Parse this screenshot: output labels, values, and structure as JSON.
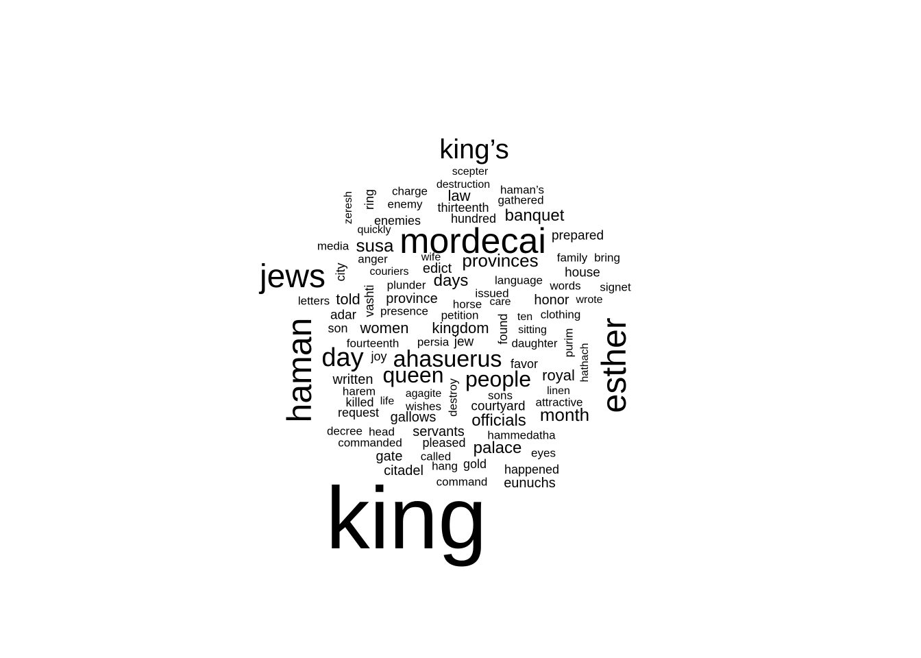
{
  "words": [
    {
      "id": "king",
      "text": "king",
      "color": "#000000"
    },
    {
      "id": "mordecai",
      "text": "mordecai",
      "color": "#000000"
    },
    {
      "id": "esther",
      "text": "esther",
      "color": "#000000"
    },
    {
      "id": "haman",
      "text": "haman",
      "color": "#000000"
    },
    {
      "id": "jews",
      "text": "jews",
      "color": "#000000"
    },
    {
      "id": "kings",
      "text": "king’s",
      "color": "#000000"
    },
    {
      "id": "day",
      "text": "day",
      "color": "#000000"
    },
    {
      "id": "ahasuerus",
      "text": "ahasuerus",
      "color": "#000000"
    },
    {
      "id": "queen",
      "text": "queen",
      "color": "#000000"
    },
    {
      "id": "people",
      "text": "people",
      "color": "#000000"
    },
    {
      "id": "provinces",
      "text": "provinces",
      "color": "#000000"
    },
    {
      "id": "susa",
      "text": "susa",
      "color": "#000000"
    },
    {
      "id": "month",
      "text": "month",
      "color": "#000000"
    },
    {
      "id": "officials",
      "text": "officials",
      "color": "#000000"
    },
    {
      "id": "palace",
      "text": "palace",
      "color": "#000000"
    },
    {
      "id": "banquet",
      "text": "banquet",
      "color": "#000000"
    },
    {
      "id": "days",
      "text": "days",
      "color": "#000000"
    },
    {
      "id": "royal",
      "text": "royal",
      "color": "#000000"
    },
    {
      "id": "kingdom",
      "text": "kingdom",
      "color": "#000000"
    },
    {
      "id": "women",
      "text": "women",
      "color": "#000000"
    },
    {
      "id": "law",
      "text": "law",
      "color": "#000000"
    },
    {
      "id": "told",
      "text": "told",
      "color": "#000000"
    },
    {
      "id": "province",
      "text": "province",
      "color": "#000000"
    },
    {
      "id": "edict",
      "text": "edict",
      "color": "#000000"
    },
    {
      "id": "written",
      "text": "written",
      "color": "#000000"
    },
    {
      "id": "gallows",
      "text": "gallows",
      "color": "#000000"
    },
    {
      "id": "servants",
      "text": "servants",
      "color": "#000000"
    },
    {
      "id": "gate",
      "text": "gate",
      "color": "#000000"
    },
    {
      "id": "citadel",
      "text": "citadel",
      "color": "#000000"
    },
    {
      "id": "eunuchs",
      "text": "eunuchs",
      "color": "#000000"
    },
    {
      "id": "courtyard",
      "text": "courtyard",
      "color": "#000000"
    },
    {
      "id": "request",
      "text": "request",
      "color": "#000000"
    },
    {
      "id": "prepared",
      "text": "prepared",
      "color": "#000000"
    },
    {
      "id": "honor",
      "text": "honor",
      "color": "#000000"
    },
    {
      "id": "house",
      "text": "house",
      "color": "#000000"
    },
    {
      "id": "adar",
      "text": "adar",
      "color": "#000000"
    },
    {
      "id": "enemies",
      "text": "enemies",
      "color": "#000000"
    },
    {
      "id": "hundred",
      "text": "hundred",
      "color": "#000000"
    },
    {
      "id": "thirteenth",
      "text": "thirteenth",
      "color": "#000000"
    },
    {
      "id": "charge",
      "text": "charge",
      "color": "#000000"
    },
    {
      "id": "enemy",
      "text": "enemy",
      "color": "#000000"
    },
    {
      "id": "scepter",
      "text": "scepter",
      "color": "#000000"
    },
    {
      "id": "destruction",
      "text": "destruction",
      "color": "#000000"
    },
    {
      "id": "hamans",
      "text": "haman’s",
      "color": "#000000"
    },
    {
      "id": "gathered",
      "text": "gathered",
      "color": "#000000"
    },
    {
      "id": "zeresh",
      "text": "zeresh",
      "color": "#000000"
    },
    {
      "id": "ring",
      "text": "ring",
      "color": "#000000"
    },
    {
      "id": "quickly",
      "text": "quickly",
      "color": "#000000"
    },
    {
      "id": "media",
      "text": "media",
      "color": "#000000"
    },
    {
      "id": "anger",
      "text": "anger",
      "color": "#000000"
    },
    {
      "id": "wife",
      "text": "wife",
      "color": "#000000"
    },
    {
      "id": "family",
      "text": "family",
      "color": "#000000"
    },
    {
      "id": "bring",
      "text": "bring",
      "color": "#000000"
    },
    {
      "id": "city",
      "text": "city",
      "color": "#000000"
    },
    {
      "id": "couriers",
      "text": "couriers",
      "color": "#000000"
    },
    {
      "id": "plunder",
      "text": "plunder",
      "color": "#000000"
    },
    {
      "id": "language",
      "text": "language",
      "color": "#000000"
    },
    {
      "id": "words",
      "text": "words",
      "color": "#000000"
    },
    {
      "id": "signet",
      "text": "signet",
      "color": "#000000"
    },
    {
      "id": "letters",
      "text": "letters",
      "color": "#000000"
    },
    {
      "id": "vashti",
      "text": "vashti",
      "color": "#000000"
    },
    {
      "id": "issued",
      "text": "issued",
      "color": "#000000"
    },
    {
      "id": "horse",
      "text": "horse",
      "color": "#000000"
    },
    {
      "id": "care",
      "text": "care",
      "color": "#000000"
    },
    {
      "id": "wrote",
      "text": "wrote",
      "color": "#000000"
    },
    {
      "id": "presence",
      "text": "presence",
      "color": "#000000"
    },
    {
      "id": "petition",
      "text": "petition",
      "color": "#000000"
    },
    {
      "id": "ten",
      "text": "ten",
      "color": "#000000"
    },
    {
      "id": "clothing",
      "text": "clothing",
      "color": "#000000"
    },
    {
      "id": "son",
      "text": "son",
      "color": "#000000"
    },
    {
      "id": "found",
      "text": "found",
      "color": "#000000"
    },
    {
      "id": "sitting",
      "text": "sitting",
      "color": "#000000"
    },
    {
      "id": "purim",
      "text": "purim",
      "color": "#000000"
    },
    {
      "id": "fourteenth",
      "text": "fourteenth",
      "color": "#000000"
    },
    {
      "id": "persia",
      "text": "persia",
      "color": "#000000"
    },
    {
      "id": "jew",
      "text": "jew",
      "color": "#000000"
    },
    {
      "id": "daughter",
      "text": "daughter",
      "color": "#000000"
    },
    {
      "id": "hathach",
      "text": "hathach",
      "color": "#000000"
    },
    {
      "id": "joy",
      "text": "joy",
      "color": "#000000"
    },
    {
      "id": "favor",
      "text": "favor",
      "color": "#000000"
    },
    {
      "id": "harem",
      "text": "harem",
      "color": "#000000"
    },
    {
      "id": "agagite",
      "text": "agagite",
      "color": "#000000"
    },
    {
      "id": "destroy",
      "text": "destroy",
      "color": "#000000"
    },
    {
      "id": "sons",
      "text": "sons",
      "color": "#000000"
    },
    {
      "id": "linen",
      "text": "linen",
      "color": "#000000"
    },
    {
      "id": "killed",
      "text": "killed",
      "color": "#000000"
    },
    {
      "id": "life",
      "text": "life",
      "color": "#000000"
    },
    {
      "id": "wishes",
      "text": "wishes",
      "color": "#000000"
    },
    {
      "id": "attractive",
      "text": "attractive",
      "color": "#000000"
    },
    {
      "id": "decree",
      "text": "decree",
      "color": "#000000"
    },
    {
      "id": "head",
      "text": "head",
      "color": "#000000"
    },
    {
      "id": "hammedatha",
      "text": "hammedatha",
      "color": "#000000"
    },
    {
      "id": "commanded",
      "text": "commanded",
      "color": "#000000"
    },
    {
      "id": "pleased",
      "text": "pleased",
      "color": "#000000"
    },
    {
      "id": "eyes",
      "text": "eyes",
      "color": "#000000"
    },
    {
      "id": "called",
      "text": "called",
      "color": "#000000"
    },
    {
      "id": "hang",
      "text": "hang",
      "color": "#000000"
    },
    {
      "id": "gold",
      "text": "gold",
      "color": "#000000"
    },
    {
      "id": "happened",
      "text": "happened",
      "color": "#000000"
    },
    {
      "id": "command",
      "text": "command",
      "color": "#000000"
    }
  ]
}
